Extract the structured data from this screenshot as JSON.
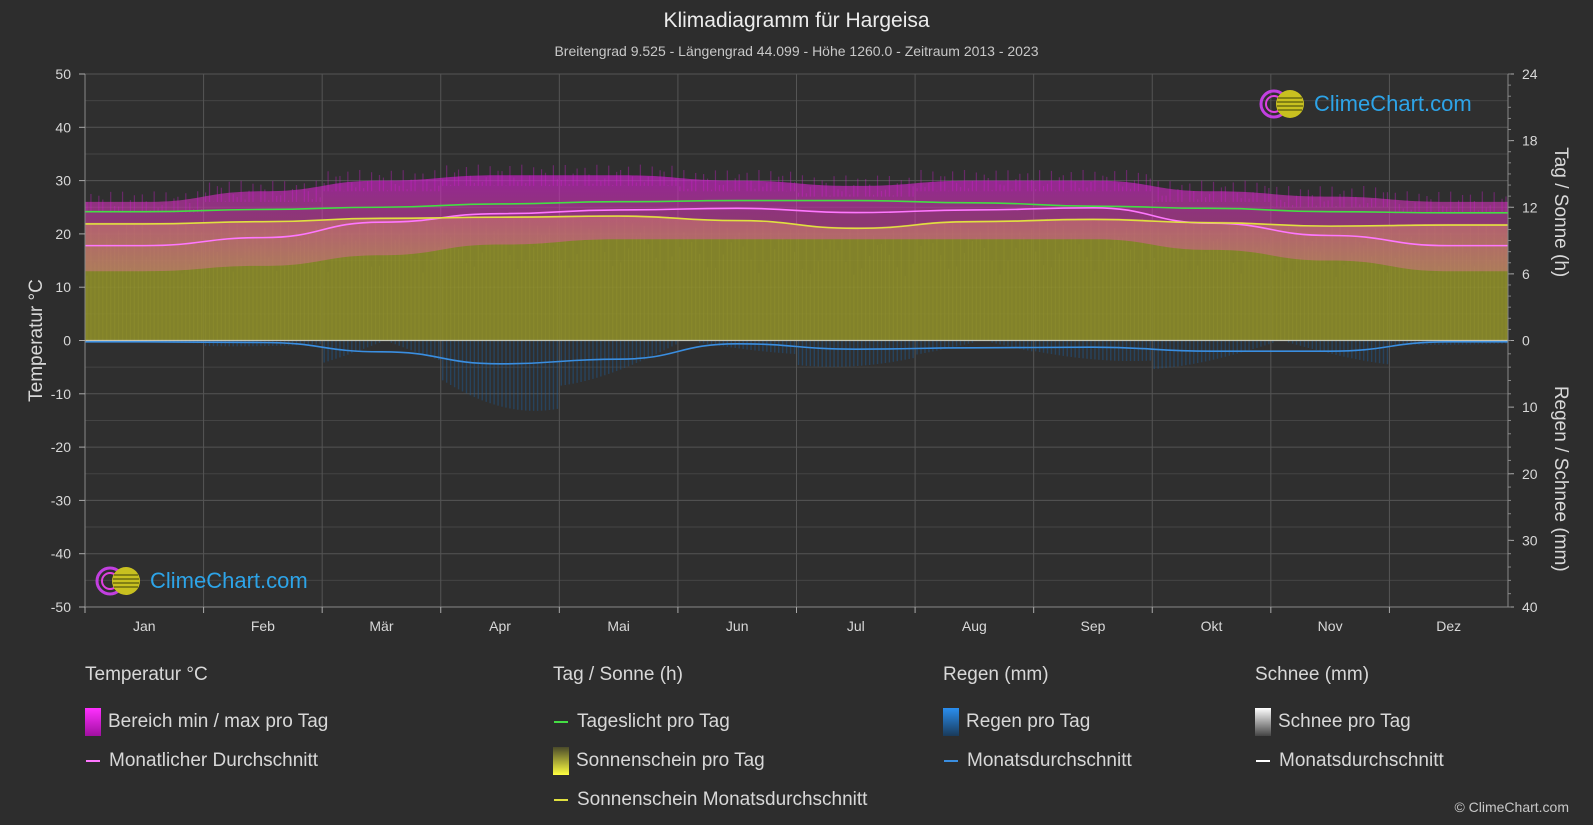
{
  "title": "Klimadiagramm für Hargeisa",
  "subtitle": "Breitengrad 9.525 - Längengrad 44.099 - Höhe 1260.0 - Zeitraum 2013 - 2023",
  "brand": "ClimeChart.com",
  "copyright": "© ClimeChart.com",
  "colors": {
    "background": "#2d2d2d",
    "temp_range": "#d21ed2",
    "temp_avg": "#ff77ff",
    "daylight": "#44dd44",
    "sunshine_fill": "#8c8c2a",
    "sunshine_avg": "#e0e040",
    "rain": "#1f78c8",
    "rain_avg": "#3a8ee0",
    "snow_avg": "#ffffff",
    "brand_blue": "#2da4e8"
  },
  "legend": {
    "temperature": {
      "heading": "Temperatur °C",
      "items": [
        "Bereich min / max pro Tag",
        "Monatlicher Durchschnitt"
      ]
    },
    "sun": {
      "heading": "Tag / Sonne (h)",
      "items": [
        "Tageslicht pro Tag",
        "Sonnenschein pro Tag",
        "Sonnenschein Monatsdurchschnitt"
      ]
    },
    "rain": {
      "heading": "Regen (mm)",
      "items": [
        "Regen pro Tag",
        "Monatsdurchschnitt"
      ]
    },
    "snow": {
      "heading": "Schnee (mm)",
      "items": [
        "Schnee pro Tag",
        "Monatsdurchschnitt"
      ]
    }
  },
  "chart_data": {
    "type": "area",
    "months": [
      "Jan",
      "Feb",
      "Mär",
      "Apr",
      "Mai",
      "Jun",
      "Jul",
      "Aug",
      "Sep",
      "Okt",
      "Nov",
      "Dez"
    ],
    "axes": {
      "left": {
        "label": "Temperatur °C",
        "range": [
          -50,
          50
        ],
        "ticks": [
          50,
          40,
          30,
          20,
          10,
          0,
          -10,
          -20,
          -30,
          -40,
          -50
        ]
      },
      "right_top": {
        "label": "Tag / Sonne (h)",
        "range": [
          0,
          24
        ],
        "ticks": [
          24,
          18,
          12,
          6,
          0
        ]
      },
      "right_bottom": {
        "label": "Regen / Schnee (mm)",
        "range": [
          0,
          40
        ],
        "ticks": [
          10,
          20,
          30,
          40
        ]
      }
    },
    "grid": true,
    "series": [
      {
        "name": "Bereich min / max pro Tag",
        "kind": "band",
        "unit": "°C",
        "max": [
          26,
          28,
          30,
          31,
          31,
          30,
          29,
          30,
          30,
          28,
          27,
          26
        ],
        "min": [
          13,
          14,
          16,
          18,
          19,
          19,
          19,
          19,
          19,
          17,
          15,
          13
        ]
      },
      {
        "name": "Monatlicher Durchschnitt",
        "kind": "line",
        "unit": "°C",
        "values": [
          17.8,
          19.3,
          22.2,
          23.8,
          24.5,
          24.8,
          24.0,
          24.5,
          24.9,
          22.0,
          19.7,
          17.8
        ]
      },
      {
        "name": "Tageslicht pro Tag",
        "kind": "line",
        "unit": "h",
        "values": [
          11.6,
          11.8,
          12.0,
          12.3,
          12.5,
          12.6,
          12.6,
          12.4,
          12.1,
          11.9,
          11.6,
          11.5
        ]
      },
      {
        "name": "Sonnenschein pro Tag",
        "kind": "area",
        "unit": "h",
        "values": [
          10.6,
          10.7,
          11.0,
          11.2,
          11.3,
          10.8,
          10.2,
          10.8,
          11.0,
          10.7,
          10.3,
          10.5
        ]
      },
      {
        "name": "Sonnenschein Monatsdurchschnitt",
        "kind": "line",
        "unit": "h",
        "values": [
          10.5,
          10.7,
          11.0,
          11.1,
          11.2,
          10.8,
          10.1,
          10.7,
          10.9,
          10.6,
          10.3,
          10.4
        ]
      },
      {
        "name": "Regen pro Tag",
        "kind": "bars",
        "unit": "mm",
        "values": [
          0.2,
          0.4,
          2.5,
          4.8,
          3.2,
          1.0,
          1.8,
          1.5,
          1.4,
          2.0,
          1.8,
          0.3
        ]
      },
      {
        "name": "Monatsdurchschnitt (Regen)",
        "kind": "line",
        "unit": "mm",
        "values": [
          0.2,
          0.3,
          1.7,
          3.5,
          2.8,
          0.5,
          1.3,
          1.1,
          1.0,
          1.6,
          1.6,
          0.2
        ]
      },
      {
        "name": "Monatsdurchschnitt (Schnee)",
        "kind": "line",
        "unit": "mm",
        "values": [
          0,
          0,
          0,
          0,
          0,
          0,
          0,
          0,
          0,
          0,
          0,
          0
        ]
      }
    ]
  }
}
